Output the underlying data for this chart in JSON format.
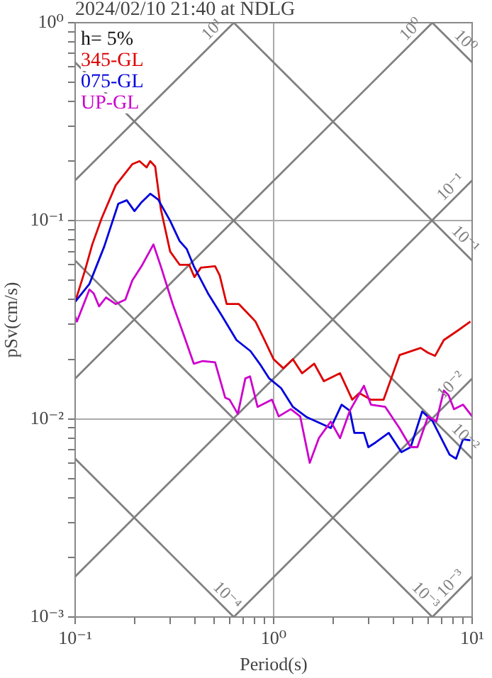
{
  "chart_data": {
    "type": "line",
    "title": "2024/02/10 21:40 at NDLG",
    "xlabel": "Period(s)",
    "ylabel": "pSv(cm/s)",
    "log": "xy",
    "grid": true,
    "legend": "top left",
    "marker": "none",
    "xlim": [
      0.1,
      10
    ],
    "ylim": [
      0.001,
      1
    ],
    "xticks": [
      {
        "value": 0.1,
        "label": "10⁻¹"
      },
      {
        "value": 0.2,
        "label": null
      },
      {
        "value": 0.3,
        "label": null
      },
      {
        "value": 0.4,
        "label": null
      },
      {
        "value": 0.5,
        "label": null
      },
      {
        "value": 0.6,
        "label": null
      },
      {
        "value": 0.7,
        "label": null
      },
      {
        "value": 0.8,
        "label": null
      },
      {
        "value": 0.9,
        "label": null
      },
      {
        "value": 1,
        "label": "10⁰"
      },
      {
        "value": 2,
        "label": null
      },
      {
        "value": 3,
        "label": null
      },
      {
        "value": 4,
        "label": null
      },
      {
        "value": 5,
        "label": null
      },
      {
        "value": 6,
        "label": null
      },
      {
        "value": 7,
        "label": null
      },
      {
        "value": 8,
        "label": null
      },
      {
        "value": 9,
        "label": null
      },
      {
        "value": 10,
        "label": "10¹"
      }
    ],
    "yticks": [
      {
        "value": 0.001,
        "label": "10⁻³"
      },
      {
        "value": 0.002,
        "label": null
      },
      {
        "value": 0.003,
        "label": null
      },
      {
        "value": 0.004,
        "label": null
      },
      {
        "value": 0.005,
        "label": null
      },
      {
        "value": 0.006,
        "label": null
      },
      {
        "value": 0.007,
        "label": null
      },
      {
        "value": 0.008,
        "label": null
      },
      {
        "value": 0.009,
        "label": null
      },
      {
        "value": 0.01,
        "label": "10⁻²"
      },
      {
        "value": 0.02,
        "label": null
      },
      {
        "value": 0.03,
        "label": null
      },
      {
        "value": 0.04,
        "label": null
      },
      {
        "value": 0.05,
        "label": null
      },
      {
        "value": 0.06,
        "label": null
      },
      {
        "value": 0.07,
        "label": null
      },
      {
        "value": 0.08,
        "label": null
      },
      {
        "value": 0.09,
        "label": null
      },
      {
        "value": 0.1,
        "label": "10⁻¹"
      },
      {
        "value": 0.2,
        "label": null
      },
      {
        "value": 0.3,
        "label": null
      },
      {
        "value": 0.4,
        "label": null
      },
      {
        "value": 0.5,
        "label": null
      },
      {
        "value": 0.6,
        "label": null
      },
      {
        "value": 0.7,
        "label": null
      },
      {
        "value": 0.8,
        "label": null
      },
      {
        "value": 0.9,
        "label": null
      },
      {
        "value": 1,
        "label": "10⁰"
      }
    ],
    "series": [
      {
        "name": "10¹",
        "color": "#808080",
        "x": [
          0.1,
          0.63
        ],
        "values": [
          0.16,
          1
        ]
      },
      {
        "name": "10⁰",
        "color": "#808080",
        "x": [
          0.1,
          6.3
        ],
        "values": [
          0.016,
          1
        ]
      },
      {
        "name": "10⁻¹",
        "color": "#808080",
        "x": [
          0.1,
          10
        ],
        "values": [
          0.0016,
          0.16
        ]
      },
      {
        "name": "10⁻²",
        "color": "#808080",
        "x": [
          0.63,
          10
        ],
        "values": [
          0.001,
          0.016
        ]
      },
      {
        "name": "10⁻³",
        "color": "#808080",
        "x": [
          6.3,
          10
        ],
        "values": [
          0.001,
          0.0016
        ]
      },
      {
        "name": "10⁰",
        "color": "#808080",
        "x": [
          6.3,
          10
        ],
        "values": [
          1,
          0.63
        ]
      },
      {
        "name": "10⁻¹",
        "color": "#808080",
        "x": [
          0.63,
          10
        ],
        "values": [
          1,
          0.063
        ]
      },
      {
        "name": "10⁻²",
        "color": "#808080",
        "x": [
          0.1,
          10
        ],
        "values": [
          0.63,
          0.0063
        ]
      },
      {
        "name": "10⁻³",
        "color": "#808080",
        "x": [
          0.1,
          6.3
        ],
        "values": [
          0.063,
          0.001
        ]
      },
      {
        "name": "10⁻⁴",
        "color": "#808080",
        "x": [
          0.1,
          0.63
        ],
        "values": [
          0.0063,
          0.001
        ]
      },
      {
        "name": "345-GL",
        "color": "#dd0000",
        "x": [
          0.1,
          0.112,
          0.122,
          0.136,
          0.16,
          0.194,
          0.211,
          0.229,
          0.239,
          0.253,
          0.27,
          0.301,
          0.336,
          0.375,
          0.399,
          0.43,
          0.507,
          0.535,
          0.58,
          0.668,
          0.764,
          0.81,
          0.9,
          1.0,
          1.12,
          1.25,
          1.39,
          1.6,
          1.79,
          2.16,
          2.49,
          2.7,
          3.09,
          3.58,
          4.31,
          5.5,
          5.98,
          6.5,
          7.2,
          8.5,
          9.8
        ],
        "values": [
          0.039,
          0.056,
          0.076,
          0.103,
          0.151,
          0.193,
          0.2,
          0.186,
          0.2,
          0.188,
          0.115,
          0.07,
          0.06,
          0.06,
          0.052,
          0.058,
          0.059,
          0.053,
          0.038,
          0.038,
          0.033,
          0.031,
          0.025,
          0.02,
          0.018,
          0.02,
          0.017,
          0.019,
          0.0155,
          0.017,
          0.0125,
          0.0135,
          0.0125,
          0.0125,
          0.021,
          0.0228,
          0.0216,
          0.0208,
          0.025,
          0.028,
          0.031
        ]
      },
      {
        "name": "075-GL",
        "color": "#0000dd",
        "x": [
          0.1,
          0.118,
          0.14,
          0.165,
          0.182,
          0.199,
          0.216,
          0.239,
          0.262,
          0.301,
          0.336,
          0.365,
          0.396,
          0.467,
          0.55,
          0.65,
          0.764,
          0.85,
          0.95,
          1.09,
          1.25,
          1.47,
          1.94,
          2.2,
          2.42,
          2.55,
          2.85,
          3.0,
          3.26,
          3.8,
          4.4,
          4.9,
          5.6,
          6.3,
          7.7,
          8.3,
          9.0,
          9.8
        ],
        "values": [
          0.039,
          0.048,
          0.074,
          0.122,
          0.127,
          0.112,
          0.124,
          0.137,
          0.128,
          0.1,
          0.079,
          0.072,
          0.059,
          0.043,
          0.033,
          0.025,
          0.022,
          0.019,
          0.016,
          0.0143,
          0.0115,
          0.0102,
          0.009,
          0.0118,
          0.011,
          0.0085,
          0.0085,
          0.0072,
          0.0076,
          0.0085,
          0.0068,
          0.0072,
          0.0109,
          0.0098,
          0.0066,
          0.0063,
          0.0079,
          0.0078
        ]
      },
      {
        "name": "UP-GL",
        "color": "#cc00cc",
        "x": [
          0.1,
          0.102,
          0.118,
          0.124,
          0.132,
          0.143,
          0.16,
          0.179,
          0.194,
          0.216,
          0.248,
          0.27,
          0.31,
          0.355,
          0.396,
          0.44,
          0.507,
          0.57,
          0.6,
          0.66,
          0.72,
          0.76,
          0.83,
          0.98,
          1.06,
          1.22,
          1.36,
          1.52,
          1.69,
          1.94,
          2.16,
          2.42,
          2.85,
          3.09,
          3.65,
          4.3,
          4.9,
          5.3,
          6.0,
          6.6,
          7.2,
          7.6,
          8.1,
          9.0,
          10
        ],
        "values": [
          0.033,
          0.031,
          0.045,
          0.043,
          0.037,
          0.041,
          0.038,
          0.04,
          0.05,
          0.059,
          0.076,
          0.059,
          0.038,
          0.026,
          0.019,
          0.0196,
          0.0193,
          0.0128,
          0.0125,
          0.0106,
          0.016,
          0.0164,
          0.0115,
          0.0125,
          0.0103,
          0.0112,
          0.0103,
          0.006,
          0.008,
          0.0097,
          0.008,
          0.011,
          0.0147,
          0.0118,
          0.0115,
          0.009,
          0.0072,
          0.0072,
          0.0103,
          0.0097,
          0.0139,
          0.0132,
          0.0112,
          0.0118,
          0.0103
        ]
      }
    ],
    "annotations": [
      "h= 5%"
    ]
  }
}
